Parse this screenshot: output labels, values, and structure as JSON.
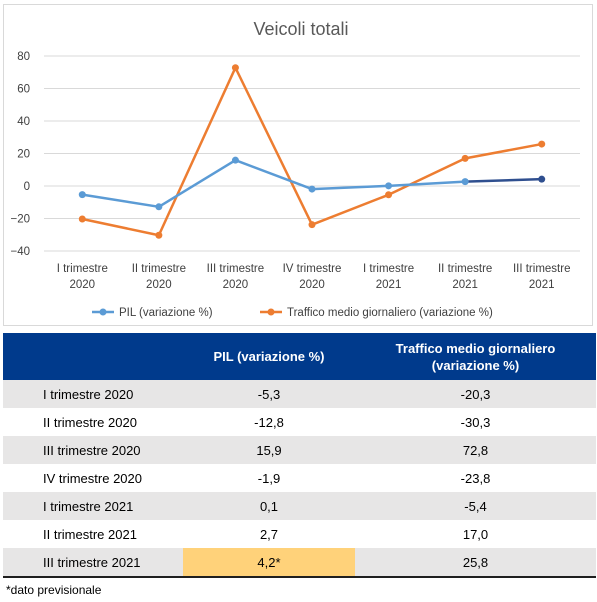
{
  "chart_data": {
    "type": "line",
    "title": "Veicoli totali",
    "categories": [
      [
        "I trimestre",
        "2020"
      ],
      [
        "II trimestre",
        "2020"
      ],
      [
        "III trimestre",
        "2020"
      ],
      [
        "IV trimestre",
        "2020"
      ],
      [
        "I trimestre",
        "2021"
      ],
      [
        "II trimestre",
        "2021"
      ],
      [
        "III trimestre",
        "2021"
      ]
    ],
    "ylim": [
      -40,
      80
    ],
    "yticks": [
      80,
      60,
      40,
      20,
      0,
      -20,
      -40
    ],
    "ytick_labels": [
      "80",
      "60",
      "40",
      "20",
      "0",
      "−20",
      "−40"
    ],
    "grid": true,
    "legend_position": "bottom",
    "series": [
      {
        "name": "PIL (variazione %)",
        "color": "#5b9bd5",
        "forecast_color": "#2f4f8f",
        "values": [
          -5.3,
          -12.8,
          15.9,
          -1.9,
          0.1,
          2.7,
          4.2
        ]
      },
      {
        "name": "Traffico medio giornaliero (variazione %)",
        "color": "#ed7d31",
        "values": [
          -20.3,
          -30.3,
          72.8,
          -23.8,
          -5.4,
          17.0,
          25.8
        ]
      }
    ]
  },
  "table": {
    "headers": [
      "",
      "PIL (variazione %)",
      "Traffico medio giornaliero (variazione %)"
    ],
    "header_traffic_line1": "Traffico medio giornaliero",
    "header_traffic_line2": "(variazione %)",
    "rows": [
      {
        "label": "I trimestre 2020",
        "pil": "-5,3",
        "traffico": "-20,3"
      },
      {
        "label": "II trimestre 2020",
        "pil": "-12,8",
        "traffico": "-30,3"
      },
      {
        "label": "III trimestre 2020",
        "pil": "15,9",
        "traffico": "72,8"
      },
      {
        "label": "IV trimestre 2020",
        "pil": "-1,9",
        "traffico": "-23,8"
      },
      {
        "label": "I trimestre 2021",
        "pil": "0,1",
        "traffico": "-5,4"
      },
      {
        "label": "II trimestre 2021",
        "pil": "2,7",
        "traffico": "17,0"
      },
      {
        "label": "III trimestre 2021",
        "pil": "4,2*",
        "traffico": "25,8"
      }
    ]
  },
  "note": "*dato previsionale"
}
